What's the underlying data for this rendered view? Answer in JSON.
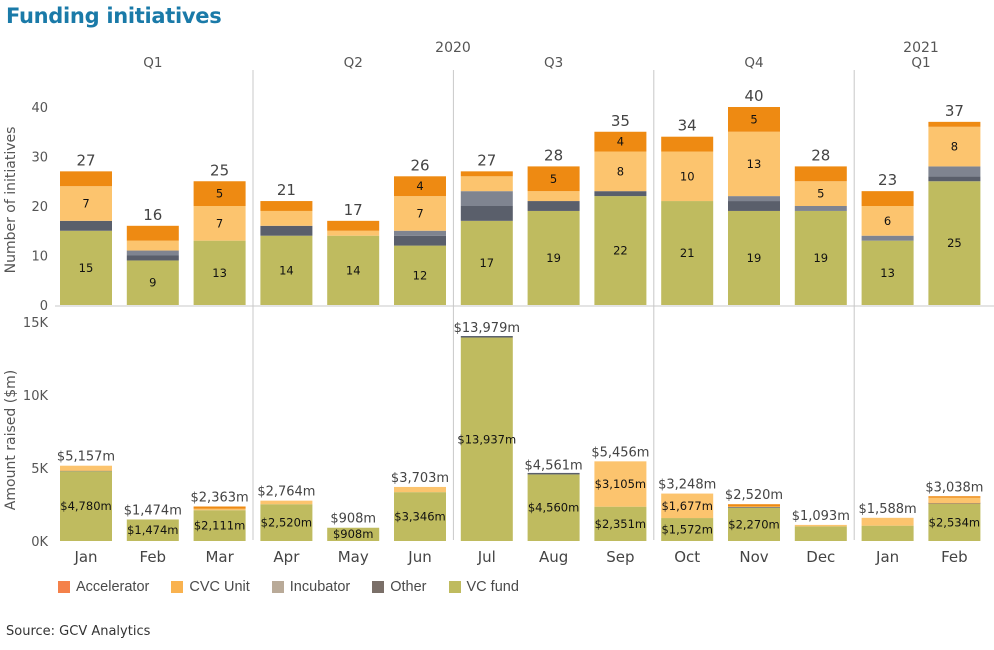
{
  "title": "Funding initiatives",
  "source": "Source: GCV Analytics",
  "legend": [
    {
      "name": "Accelerator",
      "color": "#f4814a"
    },
    {
      "name": "CVC Unit",
      "color": "#f9b24f"
    },
    {
      "name": "Incubator",
      "color": "#b9aa98"
    },
    {
      "name": "Other",
      "color": "#7a6f68"
    },
    {
      "name": "VC fund",
      "color": "#bfbb5f"
    }
  ],
  "chart_data": [
    {
      "type": "bar",
      "stacked": true,
      "title": "Funding initiatives",
      "ylabel": "Number of initiatives",
      "ylim": [
        0,
        40
      ],
      "yticks": [
        "0",
        "10",
        "20",
        "30",
        "40"
      ],
      "categories": [
        "Jan",
        "Feb",
        "Mar",
        "Apr",
        "May",
        "Jun",
        "Jul",
        "Aug",
        "Sep",
        "Oct",
        "Nov",
        "Dec",
        "Jan",
        "Feb"
      ],
      "quarters": [
        {
          "label": "Q1",
          "year": ""
        },
        {
          "label": "Q2",
          "year": "2020"
        },
        {
          "label": "Q3",
          "year": ""
        },
        {
          "label": "Q4",
          "year": ""
        },
        {
          "label": "Q1",
          "year": "2021"
        }
      ],
      "series": [
        {
          "name": "VC fund",
          "color": "#bfbb5f",
          "values": [
            15,
            9,
            13,
            14,
            14,
            12,
            17,
            19,
            22,
            21,
            19,
            19,
            13,
            25
          ]
        },
        {
          "name": "Other",
          "color": "#5a5f6b",
          "values": [
            2,
            1,
            0,
            2,
            0,
            2,
            3,
            2,
            1,
            0,
            2,
            0,
            0,
            1
          ]
        },
        {
          "name": "Incubator",
          "color": "#7f8490",
          "values": [
            0,
            1,
            0,
            0,
            0,
            1,
            3,
            0,
            0,
            0,
            1,
            1,
            1,
            2
          ]
        },
        {
          "name": "CVC Unit",
          "color": "#fcc46e",
          "values": [
            7,
            2,
            7,
            3,
            1,
            7,
            3,
            2,
            8,
            10,
            13,
            5,
            6,
            8
          ]
        },
        {
          "name": "Accelerator",
          "color": "#ee8a12",
          "values": [
            3,
            3,
            5,
            2,
            2,
            4,
            1,
            5,
            4,
            3,
            5,
            3,
            3,
            1
          ]
        }
      ],
      "segment_labels": {
        "VC fund": [
          "15",
          "9",
          "13",
          "14",
          "14",
          "12",
          "17",
          "19",
          "22",
          "21",
          "19",
          "19",
          "13",
          "25"
        ],
        "CVC Unit": [
          "7",
          "",
          "7",
          "",
          "",
          "7",
          "",
          "",
          "8",
          "10",
          "13",
          "5",
          "6",
          "8"
        ],
        "Accelerator": [
          "",
          "",
          "5",
          "",
          "",
          "4",
          "",
          "5",
          "4",
          "",
          "5",
          "",
          "",
          ""
        ]
      },
      "totals": [
        "27",
        "16",
        "25",
        "21",
        "17",
        "26",
        "27",
        "28",
        "35",
        "34",
        "40",
        "28",
        "23",
        "37"
      ]
    },
    {
      "type": "bar",
      "stacked": true,
      "ylabel": "Amount raised ($m)",
      "ylim": [
        0,
        15000
      ],
      "yticks": [
        "0K",
        "5K",
        "10K",
        "15K"
      ],
      "categories": [
        "Jan",
        "Feb",
        "Mar",
        "Apr",
        "May",
        "Jun",
        "Jul",
        "Aug",
        "Sep",
        "Oct",
        "Nov",
        "Dec",
        "Jan",
        "Feb"
      ],
      "series": [
        {
          "name": "VC fund",
          "color": "#bfbb5f",
          "values": [
            4780,
            1474,
            2111,
            2520,
            908,
            3346,
            13937,
            4560,
            2351,
            1572,
            2270,
            1000,
            1050,
            2534
          ]
        },
        {
          "name": "Other",
          "color": "#5a5f6b",
          "values": [
            20,
            0,
            0,
            0,
            0,
            0,
            42,
            1,
            0,
            0,
            40,
            0,
            0,
            30
          ]
        },
        {
          "name": "Incubator",
          "color": "#7f8490",
          "values": [
            0,
            0,
            0,
            0,
            0,
            0,
            0,
            0,
            0,
            0,
            10,
            0,
            0,
            0
          ]
        },
        {
          "name": "CVC Unit",
          "color": "#fcc46e",
          "values": [
            357,
            0,
            100,
            244,
            0,
            357,
            0,
            0,
            3105,
            1677,
            50,
            93,
            538,
            400
          ]
        },
        {
          "name": "Accelerator",
          "color": "#ee8a12",
          "values": [
            0,
            0,
            152,
            0,
            0,
            0,
            0,
            0,
            0,
            0,
            150,
            0,
            0,
            74
          ]
        }
      ],
      "segment_labels": {
        "VC fund": [
          "$4,780m",
          "$1,474m",
          "$2,111m",
          "$2,520m",
          "$908m",
          "$3,346m",
          "$13,937m",
          "$4,560m",
          "$2,351m",
          "$1,572m",
          "$2,270m",
          "",
          "",
          "$2,534m"
        ],
        "CVC Unit": [
          "",
          "",
          "",
          "",
          "",
          "",
          "",
          "",
          "$3,105m",
          "$1,677m",
          "",
          "",
          "",
          ""
        ]
      },
      "totals": [
        "$5,157m",
        "$1,474m",
        "$2,363m",
        "$2,764m",
        "$908m",
        "$3,703m",
        "$13,979m",
        "$4,561m",
        "$5,456m",
        "$3,248m",
        "$2,520m",
        "$1,093m",
        "$1,588m",
        "$3,038m"
      ]
    }
  ]
}
